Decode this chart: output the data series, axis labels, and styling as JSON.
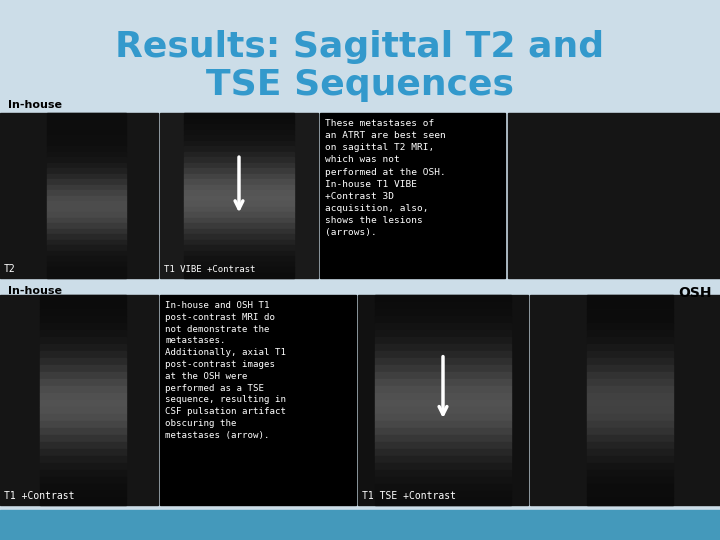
{
  "title_line1": "Results: Sagittal T2 and",
  "title_line2": "TSE Sequences",
  "title_color": "#3399cc",
  "bg_color": "#ccdde8",
  "label_inhouse_top": "In-house",
  "label_osh": "OSH",
  "label_inhouse_bottom": "In-house",
  "label_t2": "T2",
  "label_t1vibe": "T1 VIBE +Contrast",
  "label_t1contrast": "T1 +Contrast",
  "label_t1tse": "T1 TSE +Contrast",
  "text_box1": "These metastases of\nan ATRT are best seen\non sagittal T2 MRI,\nwhich was not\nperformed at the OSH.\nIn-house T1 VIBE\n+Contrast 3D\nacquisition, also,\nshows the lesions\n(arrows).",
  "text_box2": "In-house and OSH T1\npost-contrast MRI do\nnot demonstrate the\nmetastases.\nAdditionally, axial T1\npost-contrast images\nat the OSH were\nperformed as a TSE\nsequence, resulting in\nCSF pulsation artifact\nobscuring the\nmetastases (arrow).",
  "bottom_bg_color": "#4499bb"
}
